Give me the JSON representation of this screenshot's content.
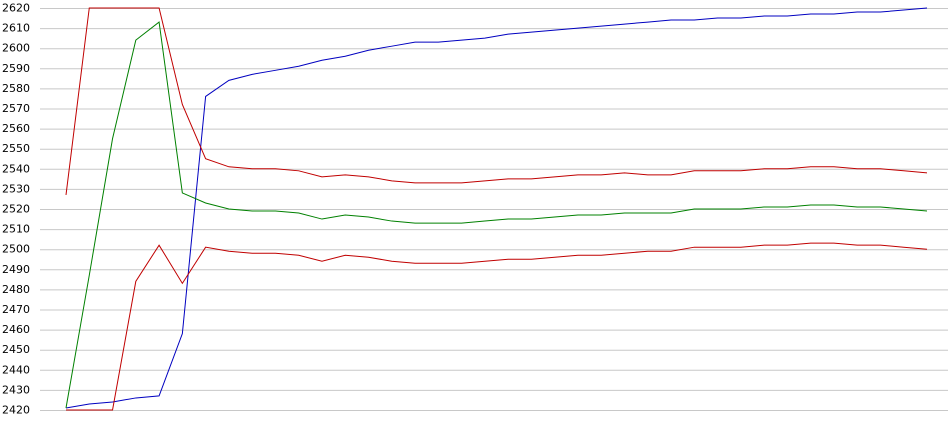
{
  "chart_data": {
    "type": "line",
    "series": [
      {
        "color": "#0000c0",
        "values": [
          2421,
          2423,
          2424,
          2426,
          2427,
          2458,
          2576,
          2584,
          2587,
          2589,
          2591,
          2594,
          2596,
          2599,
          2601,
          2603,
          2603,
          2604,
          2605,
          2607,
          2608,
          2609,
          2610,
          2611,
          2612,
          2613,
          2614,
          2614,
          2615,
          2615,
          2616,
          2616,
          2617,
          2617,
          2618,
          2618,
          2619,
          2620
        ]
      },
      {
        "color": "#c00000",
        "values": [
          2527,
          2620,
          2620,
          2620,
          2620,
          2572,
          2545,
          2541,
          2540,
          2540,
          2539,
          2536,
          2537,
          2536,
          2534,
          2533,
          2533,
          2533,
          2534,
          2535,
          2535,
          2536,
          2537,
          2537,
          2538,
          2537,
          2537,
          2539,
          2539,
          2539,
          2540,
          2540,
          2541,
          2541,
          2540,
          2540,
          2539,
          2538
        ]
      },
      {
        "color": "#008000",
        "values": [
          2421,
          2487,
          2555,
          2604,
          2613,
          2528,
          2523,
          2520,
          2519,
          2519,
          2518,
          2515,
          2517,
          2516,
          2514,
          2513,
          2513,
          2513,
          2514,
          2515,
          2515,
          2516,
          2517,
          2517,
          2518,
          2518,
          2518,
          2520,
          2520,
          2520,
          2521,
          2521,
          2522,
          2522,
          2521,
          2521,
          2520,
          2519
        ]
      },
      {
        "color": "#c00000",
        "values": [
          2420,
          2420,
          2420,
          2484,
          2502,
          2483,
          2501,
          2499,
          2498,
          2498,
          2497,
          2494,
          2497,
          2496,
          2494,
          2493,
          2493,
          2493,
          2494,
          2495,
          2495,
          2496,
          2497,
          2497,
          2498,
          2499,
          2499,
          2501,
          2501,
          2501,
          2502,
          2502,
          2503,
          2503,
          2502,
          2502,
          2501,
          2500
        ]
      }
    ],
    "ylim": [
      2420,
      2620
    ],
    "yticks": [
      2420,
      2430,
      2440,
      2450,
      2460,
      2470,
      2480,
      2490,
      2500,
      2510,
      2520,
      2530,
      2540,
      2550,
      2560,
      2570,
      2580,
      2590,
      2600,
      2610,
      2620
    ],
    "grid": true
  }
}
